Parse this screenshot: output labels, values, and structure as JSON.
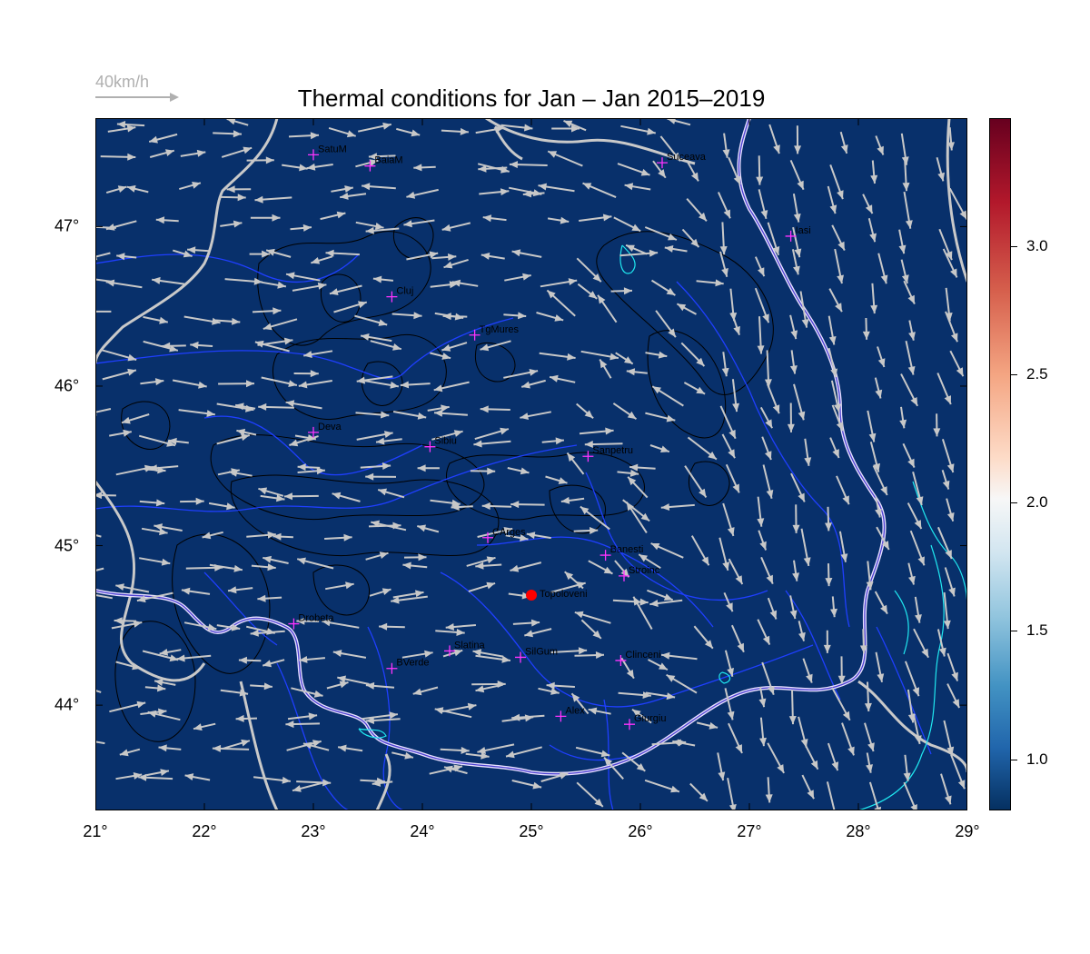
{
  "title": "Thermal conditions for Jan – Jan  2015–2019",
  "wind_scale_label": "40km/h",
  "map": {
    "lon_range": [
      21,
      29
    ],
    "lat_range": [
      43.34,
      47.68
    ],
    "background_color": "#08306b",
    "x_ticks": [
      "21°",
      "22°",
      "23°",
      "24°",
      "25°",
      "26°",
      "27°",
      "28°",
      "29°"
    ],
    "y_ticks": [
      {
        "lat": 47,
        "label": "47°"
      },
      {
        "lat": 46,
        "label": "46°"
      },
      {
        "lat": 45,
        "label": "45°"
      },
      {
        "lat": 44,
        "label": "44°"
      }
    ],
    "cities": [
      {
        "name": "SatuM",
        "lon": 23.0,
        "lat": 47.45
      },
      {
        "name": "BaiaM",
        "lon": 23.52,
        "lat": 47.38
      },
      {
        "name": "Suceava",
        "lon": 26.2,
        "lat": 47.4
      },
      {
        "name": "Iasi",
        "lon": 27.38,
        "lat": 46.94
      },
      {
        "name": "Cluj",
        "lon": 23.72,
        "lat": 46.56
      },
      {
        "name": "TgMures",
        "lon": 24.48,
        "lat": 46.32
      },
      {
        "name": "Deva",
        "lon": 23.0,
        "lat": 45.71
      },
      {
        "name": "Sibiu",
        "lon": 24.07,
        "lat": 45.62
      },
      {
        "name": "Sanpetru",
        "lon": 25.52,
        "lat": 45.56
      },
      {
        "name": "CArges",
        "lon": 24.6,
        "lat": 45.05
      },
      {
        "name": "Banesti",
        "lon": 25.68,
        "lat": 44.94
      },
      {
        "name": "Stroinc",
        "lon": 25.85,
        "lat": 44.81
      },
      {
        "name": "Drobeta",
        "lon": 22.82,
        "lat": 44.51
      },
      {
        "name": "Slatina",
        "lon": 24.25,
        "lat": 44.34
      },
      {
        "name": "SilGum",
        "lon": 24.9,
        "lat": 44.3
      },
      {
        "name": "Clinceni",
        "lon": 25.82,
        "lat": 44.28
      },
      {
        "name": "BVerde",
        "lon": 23.72,
        "lat": 44.23
      },
      {
        "name": "Alex",
        "lon": 25.27,
        "lat": 43.93
      },
      {
        "name": "Giurgiu",
        "lon": 25.9,
        "lat": 43.88
      }
    ],
    "highlight_station": {
      "name": "Topoloveni",
      "lon": 25.0,
      "lat": 44.69,
      "color": "#ff0000"
    }
  },
  "colorbar": {
    "range": [
      0.8,
      3.5
    ],
    "ticks": [
      "1.0",
      "1.5",
      "2.0",
      "2.5",
      "3.0"
    ],
    "tick_values": [
      1.0,
      1.5,
      2.0,
      2.5,
      3.0
    ]
  }
}
